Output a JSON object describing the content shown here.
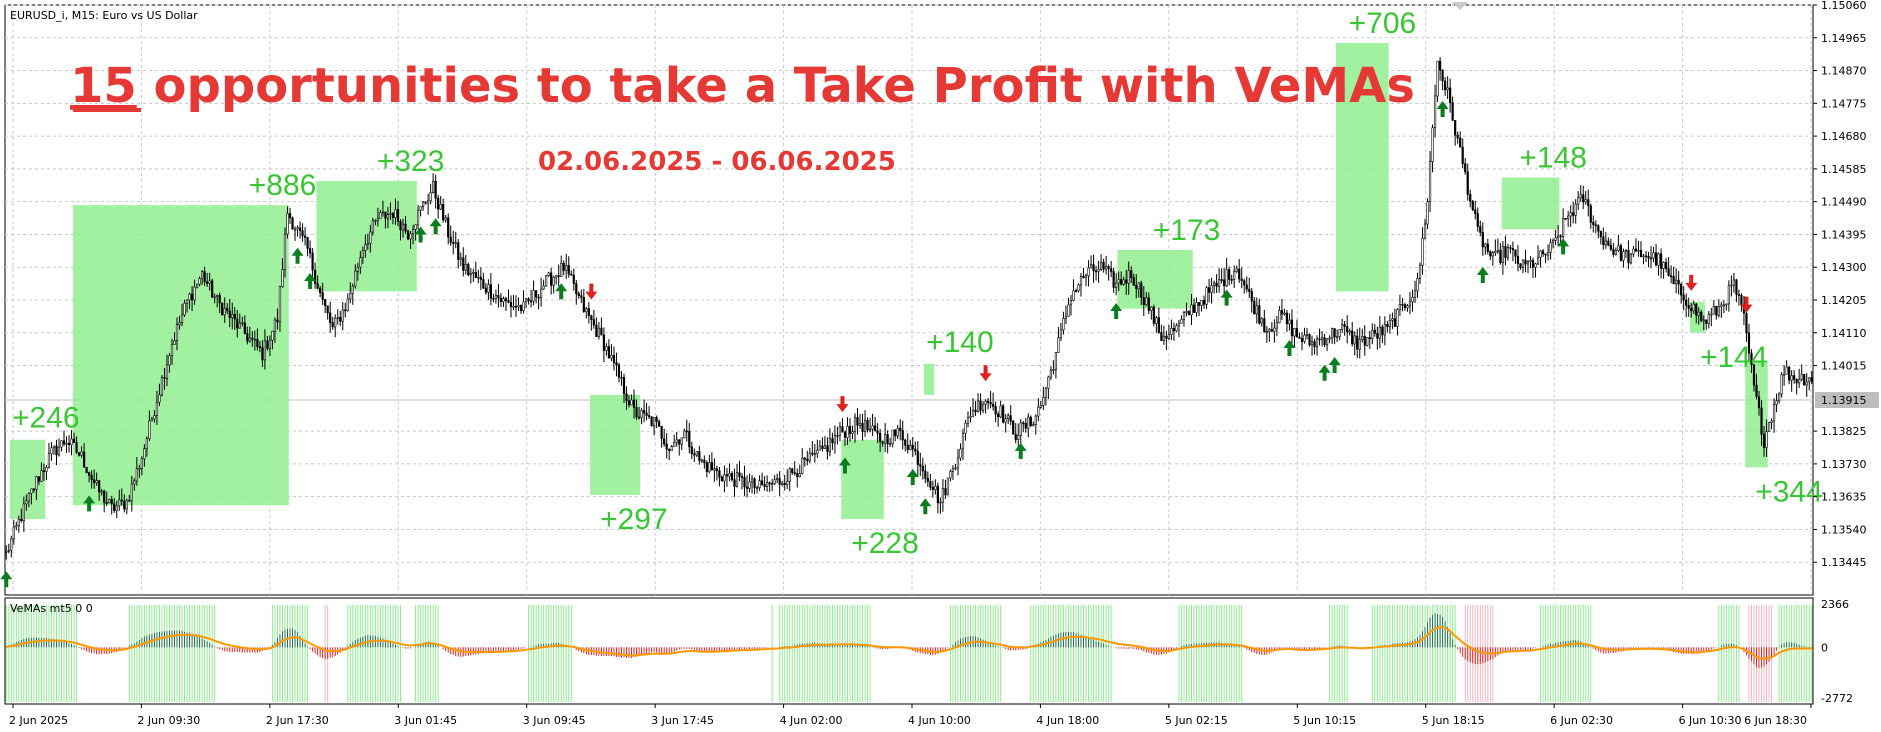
{
  "window": {
    "symbol_label": "EURUSD_i, M15:  Euro vs US Dollar",
    "indicator_label": "VeMAs mt5 0 0"
  },
  "promo": {
    "count": "15",
    "headline": " opportunities to take a Take Profit with VeMAs",
    "date_range": "02.06.2025 - 06.06.2025",
    "color": "#e53935"
  },
  "colors": {
    "profit_box": "#90ee90",
    "profit_text": "#39c634",
    "buy_arrow": "#0a7d1e",
    "sell_arrow": "#e0201f",
    "candle": "#000000",
    "price_line": "#bfbfbf",
    "ind_bull_light": "#90ee90",
    "ind_bull_dark": "#1f6f4a",
    "ind_bear": "#e0201f",
    "ind_bear_light": "#f4b6c0",
    "ind_line": "#ff9800"
  },
  "chart_data": [
    {
      "type": "candlestick",
      "title": "EURUSD_i, M15:  Euro vs US Dollar",
      "ylim": [
        1.1335,
        1.1506
      ],
      "y_ticks": [
        "1.15060",
        "1.14965",
        "1.14870",
        "1.14775",
        "1.14680",
        "1.14585",
        "1.14490",
        "1.14395",
        "1.14300",
        "1.14205",
        "1.14110",
        "1.14015",
        "1.13825",
        "1.13730",
        "1.13635",
        "1.13540",
        "1.13445"
      ],
      "current_price": "1.13915",
      "x_ticks": [
        "2 Jun 2025",
        "2 Jun 09:30",
        "2 Jun 17:30",
        "3 Jun 01:45",
        "3 Jun 09:45",
        "3 Jun 17:45",
        "4 Jun 02:00",
        "4 Jun 10:00",
        "4 Jun 18:00",
        "5 Jun 02:15",
        "5 Jun 10:15",
        "5 Jun 18:15",
        "6 Jun 02:30",
        "6 Jun 10:30",
        "6 Jun 18:30"
      ],
      "price_path": [
        [
          0,
          1.1347
        ],
        [
          6,
          1.1358
        ],
        [
          12,
          1.1368
        ],
        [
          18,
          1.1376
        ],
        [
          24,
          1.138
        ],
        [
          30,
          1.1375
        ],
        [
          36,
          1.1366
        ],
        [
          42,
          1.136
        ],
        [
          48,
          1.1362
        ],
        [
          54,
          1.1375
        ],
        [
          60,
          1.1392
        ],
        [
          66,
          1.1408
        ],
        [
          72,
          1.142
        ],
        [
          78,
          1.1428
        ],
        [
          84,
          1.142
        ],
        [
          90,
          1.1415
        ],
        [
          96,
          1.141
        ],
        [
          102,
          1.1405
        ],
        [
          108,
          1.1415
        ],
        [
          112,
          1.1446
        ],
        [
          120,
          1.1435
        ],
        [
          126,
          1.142
        ],
        [
          130,
          1.1412
        ],
        [
          136,
          1.142
        ],
        [
          142,
          1.1436
        ],
        [
          148,
          1.1444
        ],
        [
          154,
          1.1446
        ],
        [
          160,
          1.144
        ],
        [
          166,
          1.1448
        ],
        [
          170,
          1.1453
        ],
        [
          176,
          1.144
        ],
        [
          182,
          1.143
        ],
        [
          190,
          1.1425
        ],
        [
          198,
          1.142
        ],
        [
          206,
          1.1418
        ],
        [
          214,
          1.1425
        ],
        [
          222,
          1.143
        ],
        [
          230,
          1.1418
        ],
        [
          238,
          1.1408
        ],
        [
          244,
          1.1398
        ],
        [
          250,
          1.1388
        ],
        [
          258,
          1.1385
        ],
        [
          264,
          1.1378
        ],
        [
          270,
          1.1382
        ],
        [
          276,
          1.1374
        ],
        [
          284,
          1.137
        ],
        [
          292,
          1.1368
        ],
        [
          300,
          1.1366
        ],
        [
          308,
          1.1368
        ],
        [
          316,
          1.1372
        ],
        [
          324,
          1.1376
        ],
        [
          332,
          1.1382
        ],
        [
          340,
          1.1385
        ],
        [
          348,
          1.138
        ],
        [
          356,
          1.1382
        ],
        [
          362,
          1.1376
        ],
        [
          368,
          1.1368
        ],
        [
          372,
          1.1362
        ],
        [
          378,
          1.1374
        ],
        [
          384,
          1.1388
        ],
        [
          390,
          1.1392
        ],
        [
          396,
          1.1388
        ],
        [
          402,
          1.1382
        ],
        [
          408,
          1.1385
        ],
        [
          412,
          1.139
        ],
        [
          418,
          1.1405
        ],
        [
          424,
          1.1422
        ],
        [
          430,
          1.1428
        ],
        [
          436,
          1.143
        ],
        [
          442,
          1.1425
        ],
        [
          448,
          1.1428
        ],
        [
          454,
          1.142
        ],
        [
          460,
          1.141
        ],
        [
          466,
          1.1412
        ],
        [
          472,
          1.1418
        ],
        [
          478,
          1.1422
        ],
        [
          484,
          1.1426
        ],
        [
          490,
          1.143
        ],
        [
          496,
          1.142
        ],
        [
          502,
          1.1412
        ],
        [
          508,
          1.1416
        ],
        [
          514,
          1.141
        ],
        [
          520,
          1.1408
        ],
        [
          526,
          1.141
        ],
        [
          532,
          1.1412
        ],
        [
          538,
          1.1408
        ],
        [
          544,
          1.141
        ],
        [
          550,
          1.1412
        ],
        [
          556,
          1.1418
        ],
        [
          562,
          1.1425
        ],
        [
          566,
          1.145
        ],
        [
          570,
          1.149
        ],
        [
          574,
          1.148
        ],
        [
          580,
          1.146
        ],
        [
          586,
          1.144
        ],
        [
          592,
          1.1432
        ],
        [
          598,
          1.1435
        ],
        [
          604,
          1.143
        ],
        [
          610,
          1.1432
        ],
        [
          616,
          1.1436
        ],
        [
          622,
          1.1445
        ],
        [
          628,
          1.145
        ],
        [
          634,
          1.144
        ],
        [
          640,
          1.1435
        ],
        [
          646,
          1.1433
        ],
        [
          652,
          1.1434
        ],
        [
          658,
          1.1432
        ],
        [
          664,
          1.1425
        ],
        [
          670,
          1.142
        ],
        [
          676,
          1.1414
        ],
        [
          682,
          1.1418
        ],
        [
          688,
          1.1425
        ],
        [
          692,
          1.1415
        ],
        [
          696,
          1.1395
        ],
        [
          700,
          1.138
        ],
        [
          704,
          1.139
        ],
        [
          708,
          1.14
        ],
        [
          712,
          1.1398
        ],
        [
          720,
          1.1398
        ]
      ],
      "profit_boxes": [
        {
          "label": "+246",
          "x0": 2,
          "x1": 15,
          "y0": 1.1357,
          "y1": 1.138,
          "label_pos": "above"
        },
        {
          "label": "+886",
          "x0": 27,
          "x1": 112,
          "y0": 1.1361,
          "y1": 1.1448,
          "label_pos": "above-right"
        },
        {
          "label": "+323",
          "x0": 124,
          "x1": 163,
          "y0": 1.1423,
          "y1": 1.1455,
          "label_pos": "above-right"
        },
        {
          "label": "+297",
          "x0": 233,
          "x1": 252,
          "y0": 1.1364,
          "y1": 1.1393,
          "label_pos": "below"
        },
        {
          "label": "+228",
          "x0": 333,
          "x1": 349,
          "y0": 1.1357,
          "y1": 1.138,
          "label_pos": "below"
        },
        {
          "label": "+140",
          "x0": 366,
          "x1": 369,
          "y0": 1.1393,
          "y1": 1.1402,
          "label_pos": "above"
        },
        {
          "label": "+173",
          "x0": 443,
          "x1": 472,
          "y0": 1.1418,
          "y1": 1.1435,
          "label_pos": "above-right"
        },
        {
          "label": "+706",
          "x0": 530,
          "x1": 550,
          "y0": 1.1423,
          "y1": 1.1495,
          "label_pos": "above-right"
        },
        {
          "label": "+148",
          "x0": 596,
          "x1": 618,
          "y0": 1.1441,
          "y1": 1.1456,
          "label_pos": "above-right"
        },
        {
          "label": "+144",
          "x0": 671,
          "x1": 676,
          "y0": 1.1411,
          "y1": 1.142,
          "label_pos": "below"
        },
        {
          "label": "+344",
          "x0": 693,
          "x1": 701,
          "y0": 1.1372,
          "y1": 1.1403,
          "label_pos": "below"
        }
      ],
      "buy_signals": [
        0,
        33,
        116,
        121,
        165,
        171,
        221,
        334,
        361,
        366,
        404,
        442,
        486,
        511,
        525,
        529,
        572,
        588,
        620
      ],
      "sell_signals": [
        233,
        333,
        390,
        671,
        693
      ]
    },
    {
      "type": "bar",
      "title": "VeMAs mt5 0 0",
      "ylim": [
        -2772,
        2366
      ],
      "y_ticks": [
        "2366",
        "0",
        "-2772"
      ],
      "line_series": "orange"
    }
  ]
}
